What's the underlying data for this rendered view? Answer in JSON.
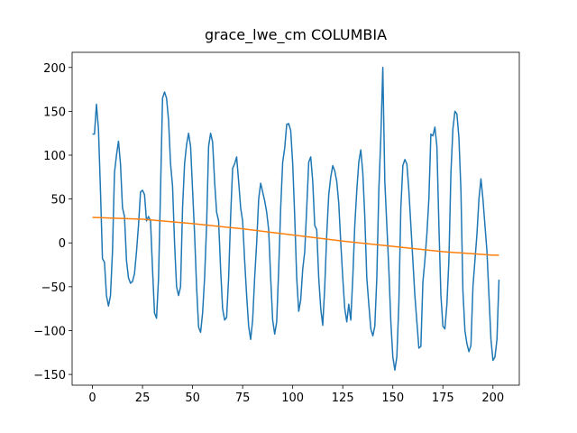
{
  "chart_data": {
    "type": "line",
    "title": "grace_lwe_cm COLUMBIA",
    "xlim": [
      -10.15,
      213.15
    ],
    "ylim": [
      -162.25,
      217.25
    ],
    "xticks": [
      0,
      25,
      50,
      75,
      100,
      125,
      150,
      175,
      200
    ],
    "yticks": [
      {
        "value": -150,
        "label": "−150"
      },
      {
        "value": -100,
        "label": "−100"
      },
      {
        "value": -50,
        "label": "−50"
      },
      0,
      50,
      100,
      150,
      200
    ],
    "series": [
      {
        "color": "#1f77b4",
        "x": [
          0,
          1,
          2,
          3,
          4,
          5,
          6,
          7,
          8,
          9,
          10,
          11,
          12,
          13,
          14,
          15,
          16,
          17,
          18,
          19,
          20,
          21,
          22,
          23,
          24,
          25,
          26,
          27,
          28,
          29,
          30,
          31,
          32,
          33,
          34,
          35,
          36,
          37,
          38,
          39,
          40,
          41,
          42,
          43,
          44,
          45,
          46,
          47,
          48,
          49,
          50,
          51,
          52,
          53,
          54,
          55,
          56,
          57,
          58,
          59,
          60,
          61,
          62,
          63,
          64,
          65,
          66,
          67,
          68,
          69,
          70,
          71,
          72,
          73,
          74,
          75,
          76,
          77,
          78,
          79,
          80,
          81,
          82,
          83,
          84,
          85,
          86,
          87,
          88,
          89,
          90,
          91,
          92,
          93,
          94,
          95,
          96,
          97,
          98,
          99,
          100,
          101,
          102,
          103,
          104,
          105,
          106,
          107,
          108,
          109,
          110,
          111,
          112,
          113,
          114,
          115,
          116,
          117,
          118,
          119,
          120,
          121,
          122,
          123,
          124,
          125,
          126,
          127,
          128,
          129,
          130,
          131,
          132,
          133,
          134,
          135,
          136,
          137,
          138,
          139,
          140,
          141,
          142,
          143,
          144,
          145,
          146,
          147,
          148,
          149,
          150,
          151,
          152,
          153,
          154,
          155,
          156,
          157,
          158,
          159,
          160,
          161,
          162,
          163,
          164,
          165,
          166,
          167,
          168,
          169,
          170,
          171,
          172,
          173,
          174,
          175,
          176,
          177,
          178,
          179,
          180,
          181,
          182,
          183,
          184,
          185,
          186,
          187,
          188,
          189,
          190,
          191,
          192,
          193,
          194,
          195,
          196,
          197,
          198,
          199,
          200,
          201,
          202,
          203
        ],
        "values": [
          124,
          124,
          158,
          130,
          60,
          -18,
          -22,
          -60,
          -72,
          -60,
          -10,
          80,
          100,
          116,
          90,
          40,
          30,
          -20,
          -40,
          -46,
          -44,
          -35,
          -10,
          20,
          58,
          60,
          55,
          25,
          30,
          25,
          -30,
          -80,
          -86,
          -40,
          60,
          165,
          172,
          165,
          140,
          90,
          65,
          0,
          -50,
          -60,
          -50,
          40,
          90,
          112,
          125,
          110,
          60,
          10,
          -50,
          -96,
          -102,
          -80,
          -40,
          20,
          110,
          125,
          115,
          70,
          35,
          25,
          -30,
          -75,
          -88,
          -85,
          -40,
          30,
          85,
          90,
          98,
          70,
          40,
          25,
          -20,
          -60,
          -95,
          -110,
          -88,
          -40,
          0,
          50,
          68,
          58,
          48,
          35,
          15,
          -40,
          -88,
          -104,
          -90,
          -30,
          40,
          92,
          108,
          135,
          136,
          128,
          90,
          30,
          -40,
          -78,
          -65,
          -30,
          -10,
          40,
          92,
          98,
          70,
          20,
          15,
          -40,
          -75,
          -94,
          -50,
          10,
          55,
          75,
          88,
          82,
          70,
          45,
          0,
          -40,
          -75,
          -90,
          -70,
          -88,
          -40,
          20,
          60,
          92,
          106,
          80,
          30,
          -40,
          -70,
          -98,
          -106,
          -95,
          -40,
          60,
          120,
          200,
          70,
          20,
          -30,
          -90,
          -130,
          -145,
          -130,
          -70,
          40,
          88,
          95,
          90,
          60,
          20,
          -20,
          -60,
          -90,
          -120,
          -118,
          -45,
          -20,
          10,
          50,
          124,
          122,
          132,
          110,
          20,
          -60,
          -95,
          -98,
          -70,
          -20,
          80,
          130,
          150,
          147,
          120,
          60,
          -55,
          -100,
          -115,
          -124,
          -117,
          -50,
          -20,
          10,
          50,
          73,
          50,
          20,
          -10,
          -60,
          -110,
          -134,
          -130,
          -110,
          -42
        ]
      },
      {
        "color": "#ff7f0e",
        "x": [
          0,
          25,
          50,
          75,
          100,
          125,
          150,
          175,
          200,
          203
        ],
        "values": [
          29,
          27,
          22,
          16,
          9,
          2,
          -4,
          -10,
          -14,
          -14
        ]
      }
    ]
  }
}
